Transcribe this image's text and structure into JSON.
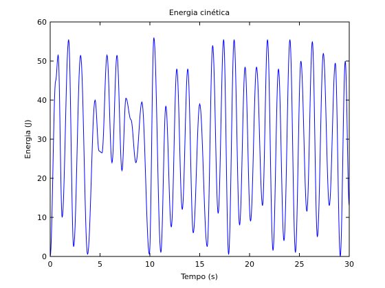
{
  "chart_data": {
    "type": "line",
    "title": "Energia cinética",
    "xlabel": "Tempo (s)",
    "ylabel": "Energia (J)",
    "xlim": [
      0,
      30
    ],
    "ylim": [
      0,
      60
    ],
    "xticks": [
      0,
      5,
      10,
      15,
      20,
      25,
      30
    ],
    "yticks": [
      0,
      10,
      20,
      30,
      40,
      50,
      60
    ],
    "grid": false,
    "line_color": "#0000ff",
    "series": [
      {
        "x": [
          0,
          0.55,
          0.8,
          1.2,
          1.85,
          2.35,
          3.05,
          3.75,
          4.5,
          4.9,
          5.2,
          5.7,
          6.2,
          6.7,
          7.2,
          7.6,
          8.1,
          8.6,
          9.2,
          9.95,
          10.4,
          11.1,
          11.6,
          12.15,
          12.7,
          13.25,
          13.8,
          14.35,
          15.0,
          15.75,
          16.3,
          16.85,
          17.4,
          17.9,
          18.45,
          19.0,
          19.55,
          20.1,
          20.7,
          21.3,
          21.8,
          22.35,
          22.9,
          23.45,
          24.05,
          24.6,
          25.15,
          25.75,
          26.3,
          26.8,
          27.4,
          28.0,
          28.6,
          29.1,
          29.6,
          30
        ],
        "y": [
          0,
          45,
          51.5,
          10,
          55.5,
          2.5,
          51.5,
          0.5,
          40,
          27,
          26.5,
          51.5,
          24,
          51.5,
          22,
          40.5,
          35,
          24,
          39.5,
          0.5,
          56,
          1,
          38.5,
          7.5,
          48,
          12,
          48,
          6,
          39,
          2.5,
          54,
          11,
          55.5,
          0.5,
          55.5,
          8,
          48.5,
          9,
          48.5,
          13,
          55.5,
          1.5,
          48,
          4,
          55.5,
          1,
          50,
          11.5,
          55,
          5,
          52,
          13,
          49.5,
          0,
          50,
          13
        ]
      }
    ]
  }
}
